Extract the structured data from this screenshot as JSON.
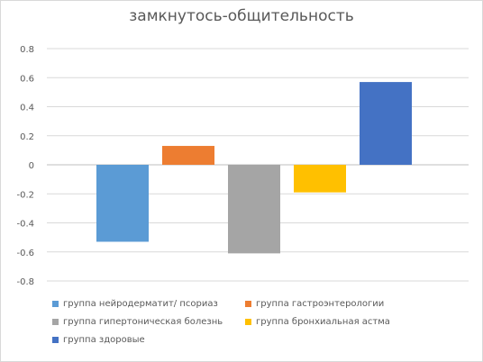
{
  "chart_data": {
    "type": "bar",
    "title": "замкнутось-общительность",
    "xlabel": "",
    "ylabel": "",
    "ylim": [
      -0.8,
      0.8
    ],
    "yticks": [
      "0.8",
      "0.6",
      "0.4",
      "0.2",
      "0",
      "-0.2",
      "-0.4",
      "-0.6",
      "-0.8"
    ],
    "grid": true,
    "legend_position": "bottom",
    "series": [
      {
        "name": "группа нейродерматит/ псориаз",
        "value": -0.53,
        "color": "#5b9bd5"
      },
      {
        "name": "группа гастроэнтерологии",
        "value": 0.13,
        "color": "#ed7d31"
      },
      {
        "name": "группа гипертоническая болезнь",
        "value": -0.61,
        "color": "#a5a5a5"
      },
      {
        "name": "группа бронхиальная астма",
        "value": -0.19,
        "color": "#ffc000"
      },
      {
        "name": "группа здоровые",
        "value": 0.57,
        "color": "#4472c4"
      }
    ]
  }
}
